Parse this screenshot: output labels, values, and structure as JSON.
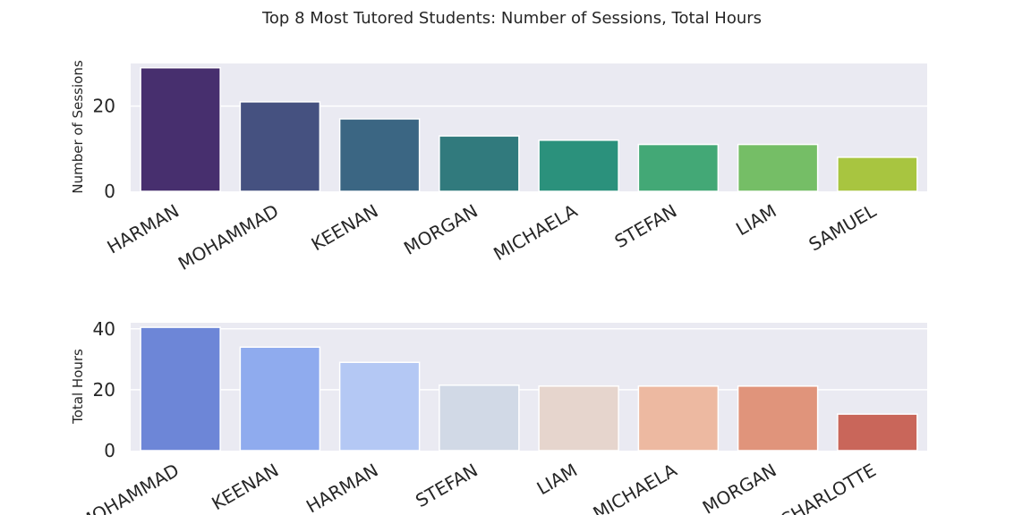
{
  "title": "Top 8 Most Tutored Students: Number of Sessions, Total Hours",
  "chart_data": [
    {
      "type": "bar",
      "categories": [
        "HARMAN",
        "MOHAMMAD",
        "KEENAN",
        "MORGAN",
        "MICHAELA",
        "STEFAN",
        "LIAM",
        "SAMUEL"
      ],
      "values": [
        29,
        21,
        17,
        13,
        12,
        11,
        11,
        8
      ],
      "ylabel": "Number of Sessions",
      "xlabel": "",
      "ylim": [
        0,
        30
      ],
      "yticks": [
        0,
        20
      ],
      "grid": true,
      "colors": [
        "#472f6e",
        "#455180",
        "#3b6683",
        "#317a7d",
        "#2b917c",
        "#43a876",
        "#75be66",
        "#a8c540"
      ]
    },
    {
      "type": "bar",
      "categories": [
        "MOHAMMAD",
        "KEENAN",
        "HARMAN",
        "STEFAN",
        "LIAM",
        "MICHAELA",
        "MORGAN",
        "CHARLOTTE"
      ],
      "values": [
        40.5,
        34,
        29,
        21.5,
        21.2,
        21.2,
        21.2,
        12
      ],
      "ylabel": "Total Hours",
      "xlabel": "",
      "ylim": [
        0,
        42
      ],
      "yticks": [
        0,
        20,
        40
      ],
      "grid": true,
      "colors": [
        "#6d86d7",
        "#8fabee",
        "#b4c8f4",
        "#d1d9e6",
        "#e6d5cd",
        "#edb9a1",
        "#e0947b",
        "#c9665a"
      ]
    }
  ]
}
